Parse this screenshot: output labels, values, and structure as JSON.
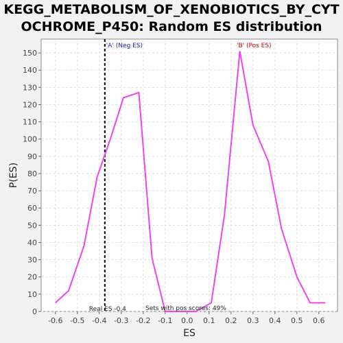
{
  "chart_data": {
    "type": "line",
    "title_line1": "KEGG_METABOLISM_OF_XENOBIOTICS_BY_CYT",
    "title_line2": "OCHROME_P450: Random ES distribution",
    "xlabel": "ES",
    "ylabel": "P(ES)",
    "xlim": [
      -0.665,
      0.685
    ],
    "ylim": [
      0,
      158
    ],
    "xticks": [
      -0.6,
      -0.5,
      -0.4,
      -0.3,
      -0.2,
      -0.1,
      0.0,
      0.1,
      0.2,
      0.3,
      0.4,
      0.5,
      0.6
    ],
    "xtick_labels": [
      "-0.6",
      "-0.5",
      "-0.4",
      "-0.3",
      "-0.2",
      "-0.1",
      "0.0",
      "0.1",
      "0.2",
      "0.3",
      "0.4",
      "0.5",
      "0.6"
    ],
    "yticks": [
      0,
      10,
      20,
      30,
      40,
      50,
      60,
      70,
      80,
      90,
      100,
      110,
      120,
      130,
      140,
      150
    ],
    "ytick_labels": [
      "0",
      "10",
      "20",
      "30",
      "40",
      "50",
      "60",
      "70",
      "80",
      "90",
      "100",
      "110",
      "120",
      "130",
      "140",
      "150"
    ],
    "grid": true,
    "series": [
      {
        "color": "#ee44ee",
        "x": [
          -0.6,
          -0.54,
          -0.47,
          -0.41,
          -0.35,
          -0.29,
          -0.22,
          -0.16,
          -0.1,
          -0.04,
          0.04,
          0.11,
          0.17,
          0.24,
          0.3,
          0.37,
          0.43,
          0.5,
          0.56,
          0.63
        ],
        "y": [
          5,
          12,
          38,
          78,
          100,
          124,
          127,
          31,
          0,
          0,
          0,
          5,
          56,
          151,
          108,
          87,
          48,
          20,
          5,
          5
        ]
      }
    ],
    "real_es": -0.375,
    "real_es_color": "#000000",
    "annotations": {
      "neg_label": "'A' (Neg ES)",
      "neg_color": "#2222cc",
      "pos_label": "'B' (Pos ES)",
      "pos_color": "#cc0000",
      "real_es_label": "Real ES -0.4",
      "pos_scores_label": "Sets with pos scores: 49%"
    }
  }
}
